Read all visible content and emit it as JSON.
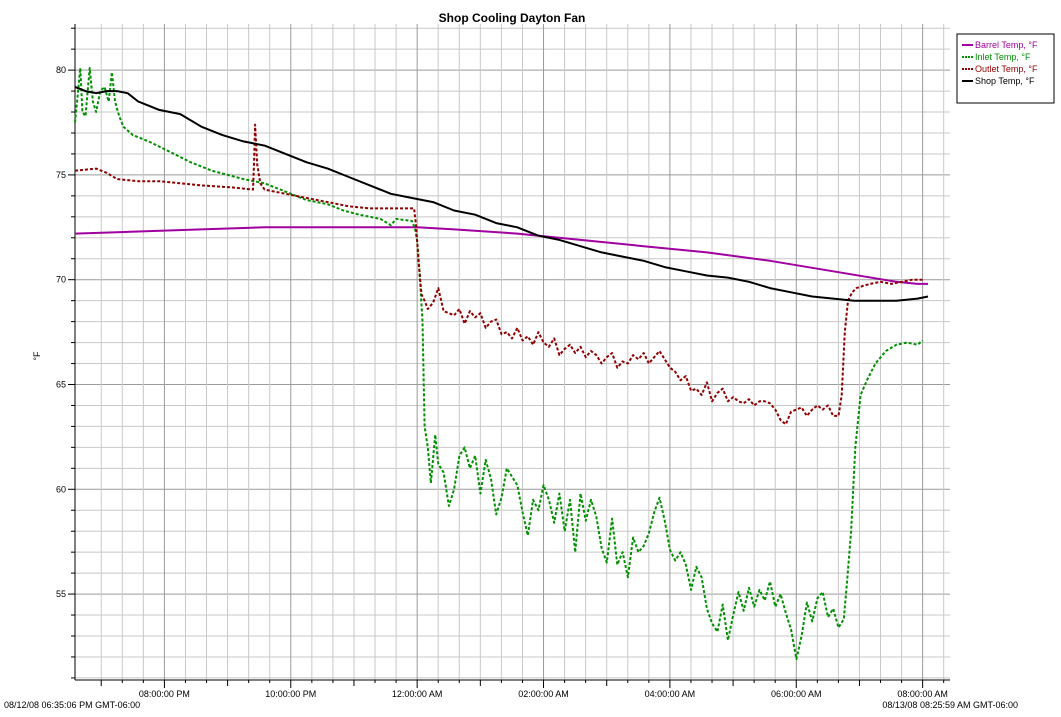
{
  "chart_data": {
    "type": "line",
    "title": "Shop Cooling Dayton Fan",
    "ylabel": "°F",
    "xlabel": "",
    "x_unit": "minutes since 18:35:06",
    "xlim": [
      0,
      830.88
    ],
    "ylim": [
      50.9,
      82.2
    ],
    "yticks": [
      55,
      60,
      65,
      70,
      75,
      80
    ],
    "xticks": [
      {
        "x": 84.9,
        "label": "08:00:00 PM"
      },
      {
        "x": 204.9,
        "label": "10:00:00 PM"
      },
      {
        "x": 324.9,
        "label": "12:00:00 AM"
      },
      {
        "x": 444.9,
        "label": "02:00:00 AM"
      },
      {
        "x": 564.9,
        "label": "04:00:00 AM"
      },
      {
        "x": 684.9,
        "label": "06:00:00 AM"
      },
      {
        "x": 804.9,
        "label": "08:00:00 AM"
      }
    ],
    "start_label": "08/12/08 06:35:06 PM GMT-06:00",
    "end_label": "08/13/08 08:25:59 AM GMT-06:00",
    "grid": true,
    "legend_position": "top-right",
    "series": [
      {
        "name": "Barrel Temp, °F",
        "color": "#a000a0",
        "dash": "solid",
        "points": [
          [
            0,
            72.2
          ],
          [
            60,
            72.3
          ],
          [
            120,
            72.4
          ],
          [
            180,
            72.5
          ],
          [
            240,
            72.5
          ],
          [
            300,
            72.5
          ],
          [
            325,
            72.5
          ],
          [
            360,
            72.4
          ],
          [
            420,
            72.2
          ],
          [
            480,
            71.9
          ],
          [
            540,
            71.6
          ],
          [
            600,
            71.3
          ],
          [
            660,
            70.9
          ],
          [
            720,
            70.4
          ],
          [
            780,
            69.9
          ],
          [
            800,
            69.8
          ],
          [
            810,
            69.8
          ]
        ]
      },
      {
        "name": "Inlet Temp, °F",
        "color": "#009000",
        "dash": "dashed",
        "points": [
          [
            0,
            77.5
          ],
          [
            2,
            78.5
          ],
          [
            5,
            80.1
          ],
          [
            7,
            78
          ],
          [
            10,
            77.8
          ],
          [
            14,
            80.1
          ],
          [
            17,
            78.5
          ],
          [
            20,
            78
          ],
          [
            24,
            79
          ],
          [
            28,
            79.2
          ],
          [
            32,
            78.5
          ],
          [
            35,
            79.9
          ],
          [
            38,
            78.5
          ],
          [
            42,
            77.8
          ],
          [
            46,
            77.3
          ],
          [
            55,
            76.9
          ],
          [
            70,
            76.6
          ],
          [
            90,
            76.1
          ],
          [
            110,
            75.6
          ],
          [
            130,
            75.2
          ],
          [
            160,
            74.8
          ],
          [
            180,
            74.6
          ],
          [
            190,
            74.4
          ],
          [
            205,
            74.1
          ],
          [
            220,
            73.8
          ],
          [
            240,
            73.6
          ],
          [
            255,
            73.3
          ],
          [
            270,
            73.1
          ],
          [
            290,
            72.9
          ],
          [
            300,
            72.6
          ],
          [
            305,
            72.9
          ],
          [
            320,
            72.8
          ],
          [
            323,
            72.4
          ],
          [
            325,
            71.8
          ],
          [
            327,
            70.5
          ],
          [
            330,
            68
          ],
          [
            332,
            63
          ],
          [
            335,
            62
          ],
          [
            338,
            60.3
          ],
          [
            342,
            62.6
          ],
          [
            345,
            61.2
          ],
          [
            350,
            60.8
          ],
          [
            355,
            59.2
          ],
          [
            360,
            60
          ],
          [
            365,
            61.6
          ],
          [
            370,
            62
          ],
          [
            375,
            61
          ],
          [
            380,
            61.6
          ],
          [
            385,
            59.8
          ],
          [
            390,
            61.4
          ],
          [
            395,
            60.5
          ],
          [
            400,
            58.8
          ],
          [
            405,
            59.6
          ],
          [
            410,
            61
          ],
          [
            415,
            60.6
          ],
          [
            420,
            60.2
          ],
          [
            425,
            58.9
          ],
          [
            430,
            57.8
          ],
          [
            435,
            59.5
          ],
          [
            440,
            59
          ],
          [
            445,
            60.2
          ],
          [
            450,
            59.5
          ],
          [
            455,
            58.4
          ],
          [
            460,
            59.8
          ],
          [
            465,
            58
          ],
          [
            470,
            59.5
          ],
          [
            475,
            57
          ],
          [
            480,
            59.8
          ],
          [
            485,
            58.5
          ],
          [
            490,
            59.5
          ],
          [
            495,
            58.7
          ],
          [
            500,
            57.2
          ],
          [
            505,
            56.5
          ],
          [
            510,
            58.6
          ],
          [
            515,
            56.4
          ],
          [
            520,
            57
          ],
          [
            525,
            55.8
          ],
          [
            530,
            57.7
          ],
          [
            535,
            57
          ],
          [
            540,
            57.3
          ],
          [
            545,
            57.9
          ],
          [
            550,
            58.9
          ],
          [
            555,
            59.6
          ],
          [
            560,
            58.5
          ],
          [
            565,
            57.1
          ],
          [
            570,
            56.6
          ],
          [
            575,
            57
          ],
          [
            580,
            56.4
          ],
          [
            585,
            55.2
          ],
          [
            590,
            56.3
          ],
          [
            595,
            55.8
          ],
          [
            600,
            54.3
          ],
          [
            605,
            53.6
          ],
          [
            610,
            53.2
          ],
          [
            615,
            54.5
          ],
          [
            620,
            52.8
          ],
          [
            625,
            54
          ],
          [
            630,
            55.1
          ],
          [
            635,
            54.2
          ],
          [
            640,
            55.3
          ],
          [
            645,
            54.4
          ],
          [
            650,
            55.2
          ],
          [
            655,
            54.7
          ],
          [
            660,
            55.6
          ],
          [
            665,
            54.4
          ],
          [
            670,
            55
          ],
          [
            675,
            54.1
          ],
          [
            680,
            53.3
          ],
          [
            685,
            51.9
          ],
          [
            690,
            53
          ],
          [
            695,
            54.6
          ],
          [
            700,
            53.7
          ],
          [
            705,
            54.8
          ],
          [
            710,
            55.1
          ],
          [
            715,
            53.9
          ],
          [
            720,
            54.3
          ],
          [
            725,
            53.4
          ],
          [
            730,
            53.8
          ],
          [
            733,
            55.5
          ],
          [
            737,
            58
          ],
          [
            741,
            62
          ],
          [
            746,
            64.5
          ],
          [
            752,
            65.2
          ],
          [
            760,
            66
          ],
          [
            770,
            66.6
          ],
          [
            780,
            66.9
          ],
          [
            790,
            67
          ],
          [
            800,
            66.9
          ],
          [
            805,
            67.1
          ]
        ]
      },
      {
        "name": "Outlet Temp, °F",
        "color": "#900000",
        "dash": "dashed",
        "points": [
          [
            0,
            75.2
          ],
          [
            20,
            75.3
          ],
          [
            30,
            75.1
          ],
          [
            40,
            74.8
          ],
          [
            60,
            74.7
          ],
          [
            80,
            74.7
          ],
          [
            100,
            74.6
          ],
          [
            120,
            74.5
          ],
          [
            150,
            74.4
          ],
          [
            169,
            74.3
          ],
          [
            170,
            75.5
          ],
          [
            171,
            77.4
          ],
          [
            173,
            75.5
          ],
          [
            176,
            74.6
          ],
          [
            180,
            74.3
          ],
          [
            200,
            74.1
          ],
          [
            220,
            73.9
          ],
          [
            240,
            73.7
          ],
          [
            260,
            73.5
          ],
          [
            280,
            73.4
          ],
          [
            300,
            73.4
          ],
          [
            322,
            73.4
          ],
          [
            324,
            72.5
          ],
          [
            326,
            71
          ],
          [
            329,
            69.3
          ],
          [
            332,
            69
          ],
          [
            335,
            68.6
          ],
          [
            340,
            68.9
          ],
          [
            345,
            69.6
          ],
          [
            350,
            68.5
          ],
          [
            355,
            68.4
          ],
          [
            360,
            68.3
          ],
          [
            365,
            68.6
          ],
          [
            370,
            67.9
          ],
          [
            375,
            68.5
          ],
          [
            380,
            68.2
          ],
          [
            385,
            68.4
          ],
          [
            390,
            67.7
          ],
          [
            395,
            68
          ],
          [
            400,
            68.1
          ],
          [
            405,
            67.4
          ],
          [
            410,
            67.5
          ],
          [
            415,
            67.2
          ],
          [
            420,
            67.7
          ],
          [
            425,
            67.1
          ],
          [
            430,
            67.3
          ],
          [
            435,
            66.9
          ],
          [
            440,
            67.5
          ],
          [
            445,
            67
          ],
          [
            450,
            66.8
          ],
          [
            455,
            67.2
          ],
          [
            460,
            66.4
          ],
          [
            465,
            66.7
          ],
          [
            470,
            66.9
          ],
          [
            475,
            66.5
          ],
          [
            480,
            66.8
          ],
          [
            485,
            66.3
          ],
          [
            490,
            66.6
          ],
          [
            495,
            66.4
          ],
          [
            500,
            66
          ],
          [
            505,
            66.3
          ],
          [
            510,
            66.5
          ],
          [
            515,
            65.8
          ],
          [
            520,
            66.1
          ],
          [
            525,
            66
          ],
          [
            530,
            66.4
          ],
          [
            535,
            66.2
          ],
          [
            540,
            66.5
          ],
          [
            545,
            66
          ],
          [
            550,
            66.3
          ],
          [
            555,
            66.6
          ],
          [
            560,
            66.2
          ],
          [
            565,
            65.8
          ],
          [
            570,
            65.6
          ],
          [
            575,
            65.2
          ],
          [
            580,
            65.4
          ],
          [
            585,
            64.7
          ],
          [
            590,
            64.8
          ],
          [
            595,
            64.5
          ],
          [
            600,
            65.1
          ],
          [
            605,
            64.2
          ],
          [
            610,
            64.6
          ],
          [
            615,
            64.8
          ],
          [
            620,
            64.2
          ],
          [
            625,
            64.4
          ],
          [
            630,
            64.2
          ],
          [
            635,
            64.1
          ],
          [
            640,
            64.3
          ],
          [
            645,
            64
          ],
          [
            650,
            64.2
          ],
          [
            655,
            64.2
          ],
          [
            660,
            64.1
          ],
          [
            665,
            63.8
          ],
          [
            670,
            63.3
          ],
          [
            675,
            63.1
          ],
          [
            680,
            63.7
          ],
          [
            685,
            63.8
          ],
          [
            690,
            63.9
          ],
          [
            695,
            63.5
          ],
          [
            700,
            63.8
          ],
          [
            705,
            64
          ],
          [
            710,
            63.8
          ],
          [
            715,
            64
          ],
          [
            720,
            63.5
          ],
          [
            725,
            63.5
          ],
          [
            728,
            64.5
          ],
          [
            731,
            67.5
          ],
          [
            734,
            69
          ],
          [
            738,
            69.4
          ],
          [
            742,
            69.6
          ],
          [
            748,
            69.7
          ],
          [
            755,
            69.8
          ],
          [
            765,
            69.9
          ],
          [
            775,
            69.8
          ],
          [
            785,
            69.9
          ],
          [
            795,
            70
          ],
          [
            805,
            70
          ]
        ]
      },
      {
        "name": "Shop Temp, °F",
        "color": "#000000",
        "dash": "solid",
        "points": [
          [
            0,
            79.2
          ],
          [
            10,
            79
          ],
          [
            20,
            78.9
          ],
          [
            30,
            79
          ],
          [
            40,
            79
          ],
          [
            50,
            78.9
          ],
          [
            60,
            78.5
          ],
          [
            70,
            78.3
          ],
          [
            80,
            78.1
          ],
          [
            100,
            77.9
          ],
          [
            120,
            77.3
          ],
          [
            140,
            76.9
          ],
          [
            160,
            76.6
          ],
          [
            180,
            76.4
          ],
          [
            200,
            76
          ],
          [
            220,
            75.6
          ],
          [
            240,
            75.3
          ],
          [
            260,
            74.9
          ],
          [
            280,
            74.5
          ],
          [
            300,
            74.1
          ],
          [
            320,
            73.9
          ],
          [
            340,
            73.7
          ],
          [
            360,
            73.3
          ],
          [
            380,
            73.1
          ],
          [
            400,
            72.7
          ],
          [
            420,
            72.5
          ],
          [
            440,
            72.1
          ],
          [
            460,
            71.9
          ],
          [
            480,
            71.6
          ],
          [
            500,
            71.3
          ],
          [
            520,
            71.1
          ],
          [
            540,
            70.9
          ],
          [
            560,
            70.6
          ],
          [
            580,
            70.4
          ],
          [
            600,
            70.2
          ],
          [
            620,
            70.1
          ],
          [
            640,
            69.9
          ],
          [
            660,
            69.6
          ],
          [
            680,
            69.4
          ],
          [
            700,
            69.2
          ],
          [
            720,
            69.1
          ],
          [
            740,
            69
          ],
          [
            760,
            69
          ],
          [
            780,
            69
          ],
          [
            800,
            69.1
          ],
          [
            810,
            69.2
          ]
        ]
      }
    ]
  }
}
